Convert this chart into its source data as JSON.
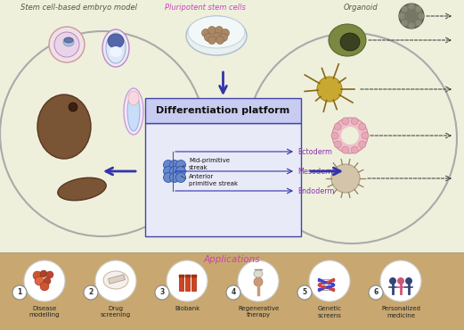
{
  "bg_top": "#eef0dc",
  "bg_bottom": "#c8a870",
  "title_top_left": "Stem cell-based embryo model",
  "title_top_center": "Pluripotent stem cells",
  "title_top_right": "Organoid",
  "box_title": "Differentiation platform",
  "box_bg": "#e8eaf8",
  "box_title_bg": "#c8ccf0",
  "box_border": "#4444aa",
  "ectoderm_label": "Ectoderm",
  "mesoderm_label": "Mesoderm",
  "endoderm_label": "Endoderm",
  "mid_prim": "Mid-primitive\nstreak",
  "ant_prim": "Anterior\nprimitive streak",
  "arrow_color": "#3333aa",
  "label_color": "#8833aa",
  "applications_title": "Applications",
  "applications_title_color": "#cc44aa",
  "app_labels": [
    "Disease\nmodelling",
    "Drug\nscreening",
    "Biobank",
    "Regenerative\ntherapy",
    "Genetic\nscreens",
    "Personalized\nmedicine"
  ],
  "app_numbers": [
    "1",
    "2",
    "3",
    "4",
    "5",
    "6"
  ],
  "top_title_color": "#555544",
  "left_circle_color": "#b8bbc0",
  "right_circle_color": "#b8bbc0"
}
